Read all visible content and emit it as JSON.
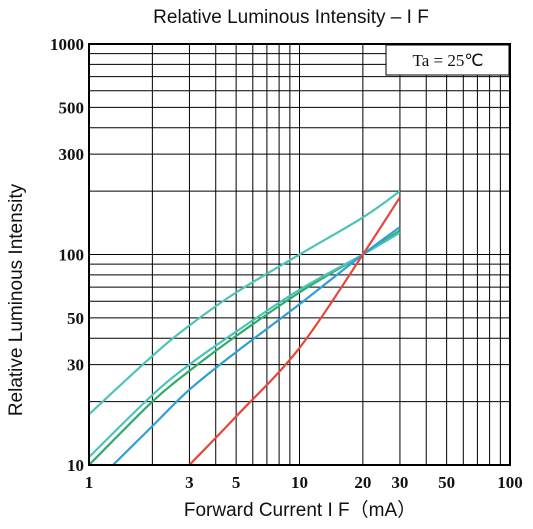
{
  "chart_data": {
    "type": "line",
    "title": "Relative Luminous Intensity – I F",
    "xlabel": "Forward Current  I F（mA）",
    "ylabel": "Relative Luminous Intensity",
    "annotation": "Ta  =  25℃",
    "x_scale": "log",
    "y_scale": "log",
    "xlim": [
      1,
      100
    ],
    "ylim": [
      10,
      1000
    ],
    "grid": true,
    "x_ticks": [
      {
        "value": 1,
        "label": "1"
      },
      {
        "value": 3,
        "label": "3"
      },
      {
        "value": 5,
        "label": "5"
      },
      {
        "value": 10,
        "label": "10"
      },
      {
        "value": 20,
        "label": "20"
      },
      {
        "value": 30,
        "label": "30"
      },
      {
        "value": 50,
        "label": "50"
      },
      {
        "value": 100,
        "label": "100"
      }
    ],
    "y_ticks": [
      {
        "value": 10,
        "label": "10"
      },
      {
        "value": 30,
        "label": "30"
      },
      {
        "value": 50,
        "label": "50"
      },
      {
        "value": 100,
        "label": "100"
      },
      {
        "value": 300,
        "label": "300"
      },
      {
        "value": 500,
        "label": "500"
      },
      {
        "value": 1000,
        "label": "1000"
      }
    ],
    "series": [
      {
        "color": "#4ec3b8",
        "x": [
          1,
          2,
          3,
          5,
          10,
          20,
          30
        ],
        "y": [
          17.4,
          33,
          46,
          66,
          100,
          150,
          200
        ]
      },
      {
        "color": "#33aa66",
        "x": [
          1,
          2,
          3,
          5,
          10,
          20,
          30
        ],
        "y": [
          10,
          20,
          28,
          41,
          66,
          100,
          130
        ]
      },
      {
        "color": "#48c4bc",
        "x": [
          1,
          2,
          3,
          5,
          10,
          20,
          30
        ],
        "y": [
          10.9,
          21.5,
          30,
          43,
          68,
          100,
          127
        ]
      },
      {
        "color": "#2f9fd6",
        "x": [
          1.3,
          2,
          3,
          5,
          10,
          20,
          30
        ],
        "y": [
          10,
          15.3,
          22.8,
          34.4,
          58,
          100,
          135
        ]
      },
      {
        "color": "#e5473a",
        "x": [
          3,
          5,
          10,
          20,
          30
        ],
        "y": [
          10,
          17,
          36,
          100,
          187
        ]
      }
    ]
  }
}
